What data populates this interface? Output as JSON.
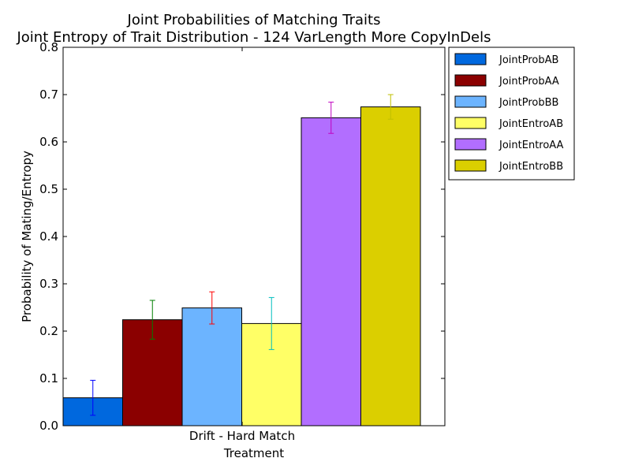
{
  "chart_data": {
    "type": "bar",
    "title": "Joint Probabilities of Matching Traits",
    "subtitle": "Joint Entropy of Trait Distribution - 124 VarLength More CopyInDels",
    "xlabel": "Treatment",
    "ylabel": "Probability of Mating/Entropy",
    "categories": [
      "Drift - Hard Match"
    ],
    "ylim": [
      0,
      0.8
    ],
    "yticks": [
      "0.0",
      "0.1",
      "0.2",
      "0.3",
      "0.4",
      "0.5",
      "0.6",
      "0.7",
      "0.8"
    ],
    "grid": false,
    "legend_position": "outside-right-top",
    "series": [
      {
        "name": "JointProbAB",
        "values": [
          0.059
        ],
        "error": [
          0.037
        ],
        "color": "#0068de",
        "error_color": "#0000ff"
      },
      {
        "name": "JointProbAA",
        "values": [
          0.224
        ],
        "error": [
          0.041
        ],
        "color": "#8b0000",
        "error_color": "#007f00"
      },
      {
        "name": "JointProbBB",
        "values": [
          0.249
        ],
        "error": [
          0.034
        ],
        "color": "#6cb4ff",
        "error_color": "#ff0000"
      },
      {
        "name": "JointEntroAB",
        "values": [
          0.216
        ],
        "error": [
          0.055
        ],
        "color": "#ffff66",
        "error_color": "#00bfbf"
      },
      {
        "name": "JointEntroAA",
        "values": [
          0.651
        ],
        "error": [
          0.033
        ],
        "color": "#b26eff",
        "error_color": "#bf00bf"
      },
      {
        "name": "JointEntroBB",
        "values": [
          0.674
        ],
        "error": [
          0.026
        ],
        "color": "#dbcf00",
        "error_color": "#bfbf00"
      }
    ]
  }
}
